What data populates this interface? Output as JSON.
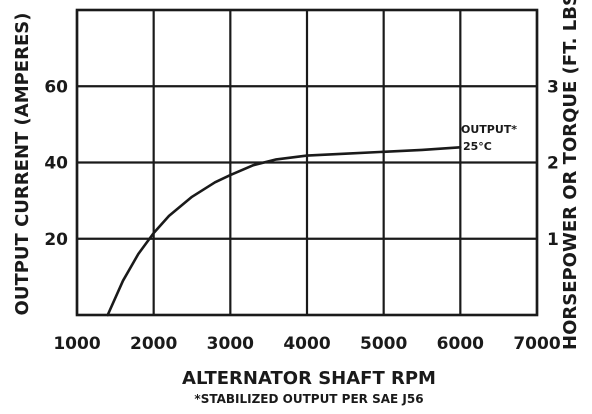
{
  "chart_data": {
    "type": "line",
    "xlabel": "ALTERNATOR SHAFT RPM",
    "ylabel_left": "OUTPUT CURRENT (AMPERES)",
    "ylabel_right": "HORSEPOWER OR TORQUE (FT. LBS.)",
    "footnote": "*STABILIZED OUTPUT PER SAE J56",
    "xlim": [
      1000,
      7000
    ],
    "ylim_left": [
      0,
      80
    ],
    "ylim_right": [
      0,
      4
    ],
    "x_ticks": [
      1000,
      2000,
      3000,
      4000,
      5000,
      6000,
      7000
    ],
    "x_tick_labels": [
      "1000",
      "2000",
      "3000",
      "4000",
      "5000",
      "6000",
      "7000"
    ],
    "y_left_ticks": [
      20,
      40,
      60
    ],
    "y_left_tick_labels": [
      "20",
      "40",
      "60"
    ],
    "y_right_ticks": [
      1,
      2,
      3
    ],
    "y_right_tick_labels": [
      "1",
      "2",
      "3"
    ],
    "grid": true,
    "series": [
      {
        "name": "OUTPUT*",
        "x": [
          1400,
          1600,
          1800,
          2000,
          2200,
          2500,
          2800,
          3000,
          3300,
          3600,
          4000,
          4500,
          5000,
          5500,
          6000
        ],
        "y": [
          0,
          9,
          16,
          21.5,
          26,
          31,
          34.8,
          36.7,
          39.3,
          40.8,
          41.8,
          42.3,
          42.8,
          43.3,
          44
        ]
      }
    ],
    "annotations": [
      {
        "text": "OUTPUT*",
        "x": 6000,
        "y": 48
      },
      {
        "text": "25°C",
        "x": 6000,
        "y": 44
      }
    ]
  }
}
